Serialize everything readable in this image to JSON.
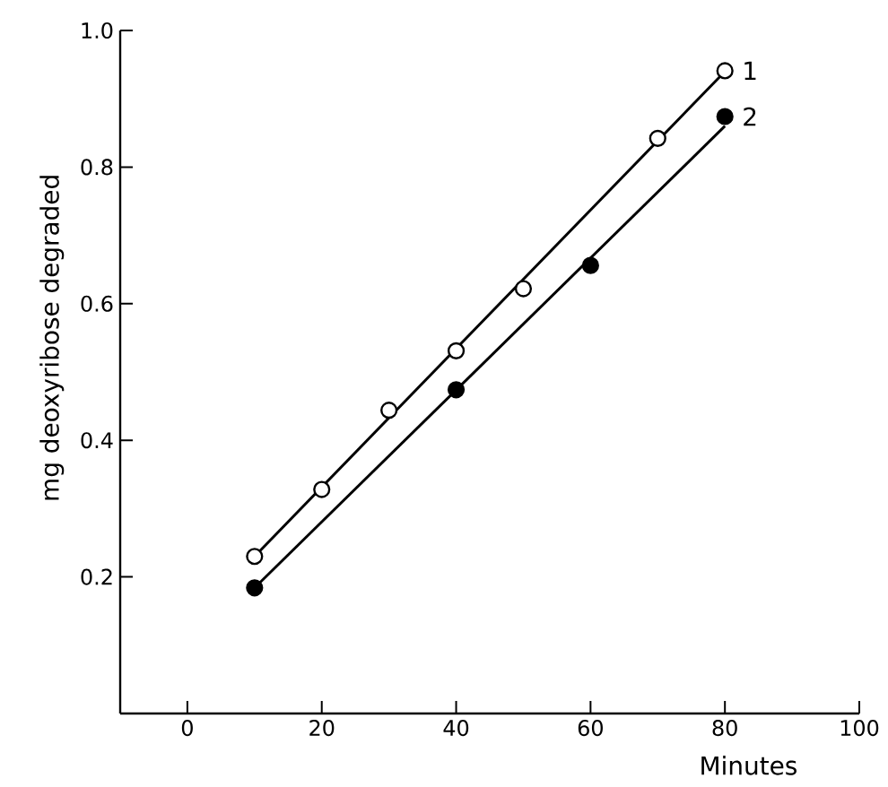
{
  "chart_data": {
    "type": "scatter",
    "xlabel": "Minutes",
    "ylabel": "mg deoxyribose degraded",
    "xlim": [
      -10,
      100
    ],
    "ylim": [
      0,
      1.0
    ],
    "xticks": [
      0,
      20,
      40,
      60,
      80,
      100
    ],
    "yticks": [
      {
        "value": 0.2,
        "label": "0.2"
      },
      {
        "value": 0.4,
        "label": "0.4"
      },
      {
        "value": 0.6,
        "label": "0.6"
      },
      {
        "value": 0.8,
        "label": "0.8"
      },
      {
        "value": 1.0,
        "label": "1.0"
      }
    ],
    "marker": "circle",
    "legend": false,
    "grid": false,
    "series": [
      {
        "name": "1",
        "color": "#ffffff",
        "x": [
          10,
          20,
          30,
          40,
          50,
          70,
          80
        ],
        "values": [
          0.23,
          0.328,
          0.444,
          0.531,
          0.622,
          0.842,
          0.941
        ]
      },
      {
        "name": "2",
        "color": "#000000",
        "x": [
          10,
          40,
          60,
          80
        ],
        "values": [
          0.184,
          0.474,
          0.656,
          0.874
        ]
      },
      {
        "type": "line",
        "color": "#000000",
        "line_style": "solid",
        "marker": "none",
        "x": [
          10,
          80
        ],
        "values": [
          0.23,
          0.94
        ]
      },
      {
        "type": "line",
        "color": "#000000",
        "line_style": "solid",
        "marker": "none",
        "x": [
          10,
          80
        ],
        "values": [
          0.184,
          0.86
        ]
      }
    ]
  }
}
